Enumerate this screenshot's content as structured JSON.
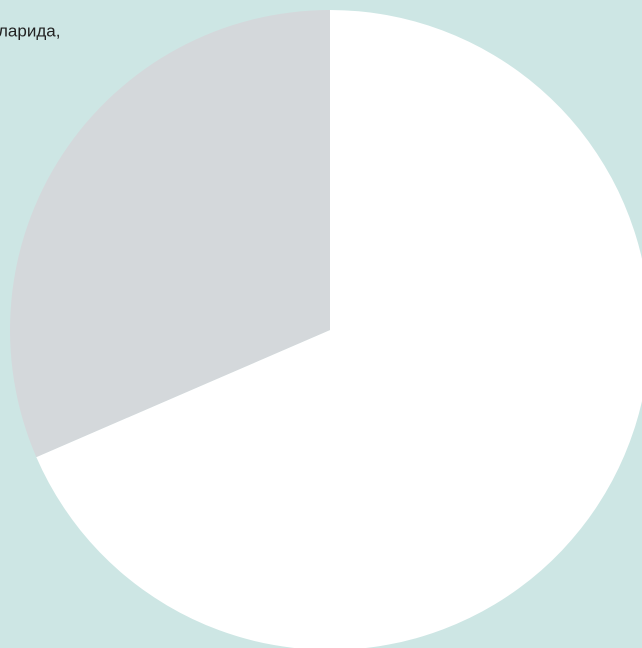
{
  "chart_data": {
    "type": "pie",
    "annotation": "ларида,",
    "values": [
      68.5,
      31.5
    ],
    "colors": [
      "#ffffff",
      "#d4d8db"
    ]
  }
}
